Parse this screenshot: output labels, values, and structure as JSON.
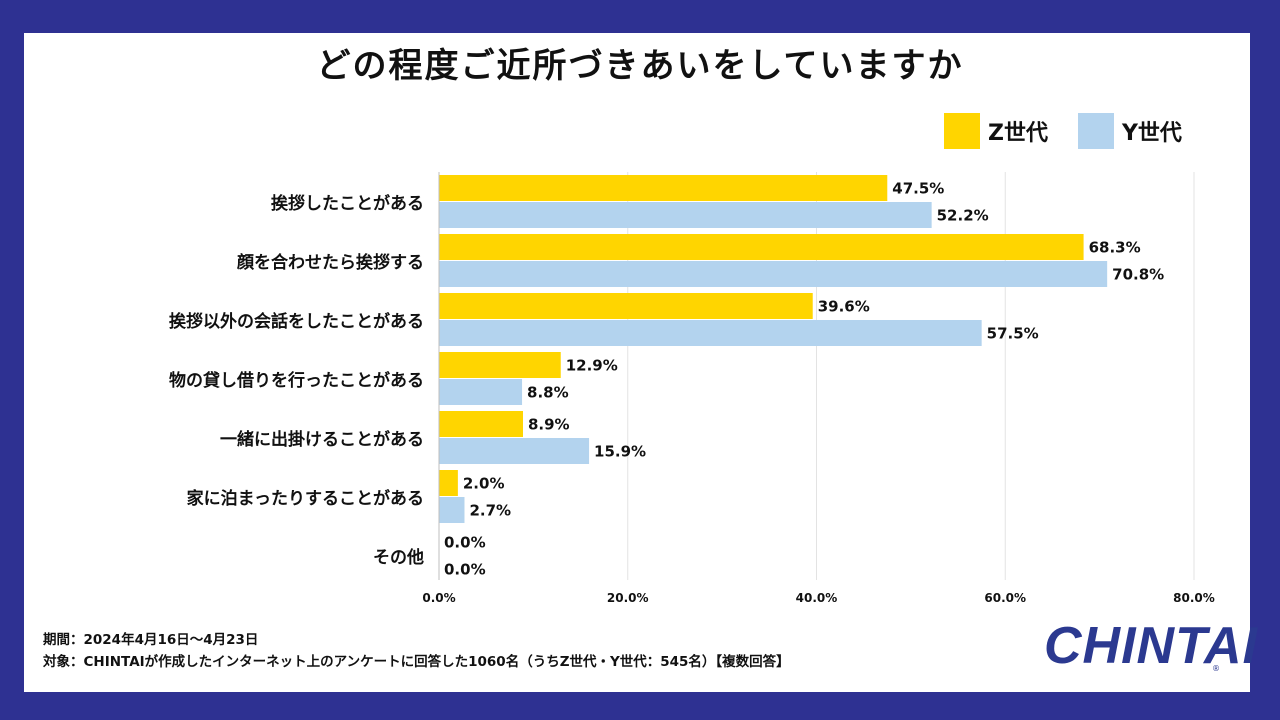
{
  "title": "どの程度ご近所づきあいをしていますか",
  "legend": [
    {
      "label": "Z世代",
      "color": "#ffd500"
    },
    {
      "label": "Y世代",
      "color": "#b3d3ee"
    }
  ],
  "chart_data": {
    "type": "bar",
    "orientation": "horizontal",
    "title": "どの程度ご近所づきあいをしていますか",
    "categories": [
      "挨拶したことがある",
      "顔を合わせたら挨拶する",
      "挨拶以外の会話をしたことがある",
      "物の貸し借りを行ったことがある",
      "一緒に出掛けることがある",
      "家に泊まったりすることがある",
      "その他"
    ],
    "series": [
      {
        "name": "Z世代",
        "color": "#ffd500",
        "values": [
          47.5,
          68.3,
          39.6,
          12.9,
          8.9,
          2.0,
          0.0
        ],
        "labels": [
          "47.5%",
          "68.3%",
          "39.6%",
          "12.9%",
          "8.9%",
          "2.0%",
          "0.0%"
        ]
      },
      {
        "name": "Y世代",
        "color": "#b3d3ee",
        "values": [
          52.2,
          70.8,
          57.5,
          8.8,
          15.9,
          2.7,
          0.0
        ],
        "labels": [
          "52.2%",
          "70.8%",
          "57.5%",
          "8.8%",
          "15.9%",
          "2.7%",
          "0.0%"
        ]
      }
    ],
    "xlim": [
      0,
      80
    ],
    "xticks": [
      0,
      20,
      40,
      60,
      80
    ],
    "xtick_labels": [
      "0.0%",
      "20.0%",
      "40.0%",
      "60.0%",
      "80.0%"
    ],
    "grid": true,
    "legend_position": "top-right",
    "xlabel": "",
    "ylabel": ""
  },
  "footer": {
    "period": "期間：2024年4月16日〜4月23日",
    "target": "対象：CHINTAIが作成したインターネット上のアンケートに回答した1060名（うちZ世代・Y世代：545名）【複数回答】"
  },
  "logo": {
    "text": "CHINTAI",
    "mark": "®"
  }
}
